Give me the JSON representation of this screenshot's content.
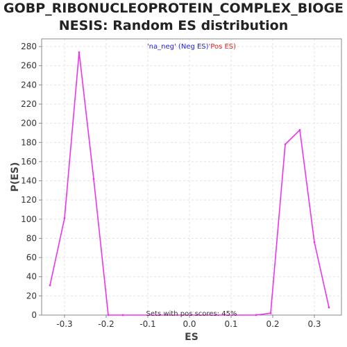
{
  "title_lines": [
    "GOBP_RIBONUCLEOPROTEIN_COMPLEX_BIOGE",
    "NESIS: Random ES distribution"
  ],
  "chart_data": {
    "type": "line",
    "title": "GOBP_RIBONUCLEOPROTEIN_COMPLEX_BIOGENESIS: Random ES distribution",
    "xlabel": "ES",
    "ylabel": "P(ES)",
    "xlim": [
      -0.355,
      0.365
    ],
    "ylim": [
      0,
      288
    ],
    "xticks": [
      -0.3,
      -0.2,
      -0.1,
      0.0,
      0.1,
      0.2,
      0.3
    ],
    "xtick_labels": [
      "-0.3",
      "-0.2",
      "-0.1",
      "0.0",
      "0.1",
      "0.2",
      "0.3"
    ],
    "yticks": [
      0,
      20,
      40,
      60,
      80,
      100,
      120,
      140,
      160,
      180,
      200,
      220,
      240,
      260,
      280
    ],
    "ytick_labels": [
      "0",
      "20",
      "40",
      "60",
      "80",
      "100",
      "120",
      "140",
      "160",
      "180",
      "200",
      "220",
      "240",
      "260",
      "280"
    ],
    "grid": true,
    "series": [
      {
        "color": "#ee33ee",
        "x": [
          -0.335,
          -0.3,
          -0.265,
          -0.23,
          -0.195,
          -0.16,
          0.16,
          0.195,
          0.23,
          0.265,
          0.3,
          0.335
        ],
        "y": [
          31,
          101,
          274,
          142,
          0,
          0,
          0,
          2,
          178,
          193,
          76,
          8
        ]
      }
    ],
    "legend": {
      "position": "top-center",
      "items": [
        {
          "text": "'na_neg' (Neg ES)",
          "color": "#2222dd"
        },
        {
          "text": "'Pos ES)",
          "color": "#dd2222"
        }
      ]
    },
    "annotation": "Sets with pos scores: 45%"
  },
  "colors": {
    "axis": "#888888",
    "grid": "#e2e2e2"
  }
}
